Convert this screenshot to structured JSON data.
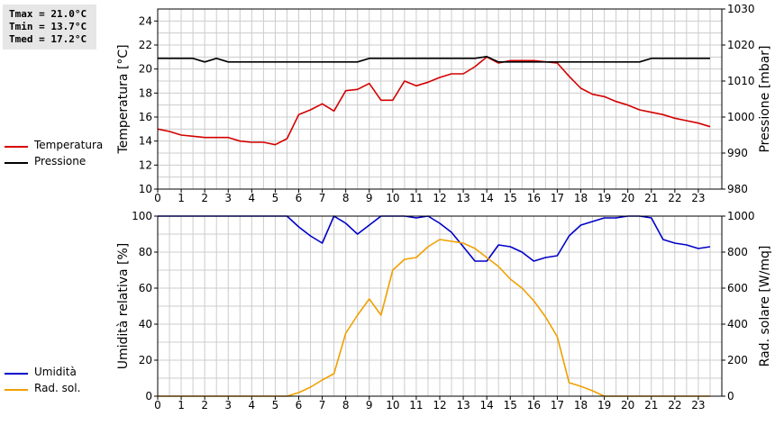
{
  "stats": {
    "tmax": "Tmax = 21.0°C",
    "tmin": "Tmin = 13.7°C",
    "tmed": "Tmed = 17.2°C"
  },
  "colors": {
    "temperature": "#d40000",
    "pressure": "#000000",
    "humidity": "#0000c8",
    "solar": "#f0a000",
    "grid": "#cccccc"
  },
  "legend_top": [
    {
      "label": "Temperatura",
      "color": "#d40000"
    },
    {
      "label": "Pressione",
      "color": "#000000"
    }
  ],
  "legend_bottom": [
    {
      "label": "Umidità",
      "color": "#0000c8"
    },
    {
      "label": "Rad. sol.",
      "color": "#f0a000"
    }
  ],
  "chart_data": [
    {
      "type": "line",
      "ylabel": "Temperatura [°C]",
      "y2label": "Pressione [mbar]",
      "xlim": [
        0,
        24
      ],
      "xticks": [
        "0",
        "1",
        "2",
        "3",
        "4",
        "5",
        "6",
        "7",
        "8",
        "9",
        "10",
        "11",
        "12",
        "13",
        "14",
        "15",
        "16",
        "17",
        "18",
        "19",
        "20",
        "21",
        "22",
        "23"
      ],
      "ylim": [
        10,
        25
      ],
      "yticks": [
        "10",
        "12",
        "14",
        "16",
        "18",
        "20",
        "22",
        "24"
      ],
      "y2lim": [
        980,
        1030
      ],
      "y2ticks": [
        "980",
        "990",
        "1000",
        "1010",
        "1020",
        "1030"
      ],
      "grid": true,
      "series": [
        {
          "name": "Temperatura",
          "axis": "left",
          "color": "#d40000",
          "x": [
            0,
            0.5,
            1,
            1.5,
            2,
            2.5,
            3,
            3.5,
            4,
            4.5,
            5,
            5.5,
            6,
            6.5,
            7,
            7.5,
            8,
            8.5,
            9,
            9.5,
            10,
            10.5,
            11,
            11.5,
            12,
            12.5,
            13,
            13.5,
            14,
            14.5,
            15,
            15.5,
            16,
            16.5,
            17,
            17.5,
            18,
            18.5,
            19,
            19.5,
            20,
            20.5,
            21,
            21.5,
            22,
            22.5,
            23,
            23.5
          ],
          "y": [
            15.0,
            14.8,
            14.5,
            14.4,
            14.3,
            14.3,
            14.3,
            14.0,
            13.9,
            13.9,
            13.7,
            14.2,
            16.2,
            16.6,
            17.1,
            16.5,
            18.2,
            18.3,
            18.8,
            17.4,
            17.4,
            19.0,
            18.6,
            18.9,
            19.3,
            19.6,
            19.6,
            20.2,
            21.0,
            20.5,
            20.7,
            20.7,
            20.7,
            20.6,
            20.5,
            19.4,
            18.4,
            17.9,
            17.7,
            17.3,
            17.0,
            16.6,
            16.4,
            16.2,
            15.9,
            15.7,
            15.5,
            15.2
          ]
        },
        {
          "name": "Pressione",
          "axis": "right",
          "color": "#000000",
          "x": [
            0,
            1.5,
            2,
            2.5,
            3,
            5,
            8.5,
            9,
            13.5,
            14,
            14.5,
            15,
            16,
            16.5,
            17,
            20.5,
            21,
            23.5
          ],
          "y": [
            1016.3,
            1016.3,
            1015.3,
            1016.3,
            1015.3,
            1015.3,
            1015.3,
            1016.3,
            1016.3,
            1016.8,
            1015.3,
            1015.3,
            1015.3,
            1015.3,
            1015.3,
            1015.3,
            1016.3,
            1016.3
          ]
        }
      ]
    },
    {
      "type": "line",
      "ylabel": "Umidità relativa [%]",
      "y2label": "Rad. solare [W/mq]",
      "xlim": [
        0,
        24
      ],
      "xticks": [
        "0",
        "1",
        "2",
        "3",
        "4",
        "5",
        "6",
        "7",
        "8",
        "9",
        "10",
        "11",
        "12",
        "13",
        "14",
        "15",
        "16",
        "17",
        "18",
        "19",
        "20",
        "21",
        "22",
        "23"
      ],
      "ylim": [
        0,
        100
      ],
      "yticks": [
        "0",
        "20",
        "40",
        "60",
        "80",
        "100"
      ],
      "y2lim": [
        0,
        1000
      ],
      "y2ticks": [
        "0",
        "200",
        "400",
        "600",
        "800",
        "1000"
      ],
      "grid": true,
      "series": [
        {
          "name": "Umidità",
          "axis": "left",
          "color": "#0000c8",
          "x": [
            0,
            5.5,
            6,
            6.5,
            7,
            7.5,
            8,
            8.5,
            9,
            9.5,
            10,
            10.5,
            11,
            11.5,
            12,
            12.5,
            13,
            13.5,
            14,
            14.5,
            15,
            15.5,
            16,
            16.5,
            17,
            17.5,
            18,
            18.5,
            19,
            19.5,
            20,
            20.5,
            21,
            21.5,
            22,
            22.5,
            23,
            23.5
          ],
          "y": [
            100,
            100,
            94,
            89,
            85,
            100,
            96,
            90,
            95,
            100,
            100,
            100,
            99,
            100,
            96,
            91,
            83,
            75,
            75,
            84,
            83,
            80,
            75,
            77,
            78,
            89,
            95,
            97,
            99,
            99,
            100,
            100,
            99,
            87,
            85,
            84,
            82,
            83
          ]
        },
        {
          "name": "Rad. sol.",
          "axis": "right",
          "color": "#f0a000",
          "x": [
            0,
            5.5,
            6,
            6.5,
            7,
            7.5,
            8,
            8.5,
            9,
            9.5,
            10,
            10.5,
            11,
            11.5,
            12,
            12.5,
            13,
            13.5,
            14,
            14.5,
            15,
            15.5,
            16,
            16.5,
            17,
            17.5,
            18,
            18.5,
            19,
            19.5,
            20,
            23.5
          ],
          "y": [
            0,
            0,
            20,
            50,
            90,
            125,
            350,
            450,
            540,
            450,
            700,
            760,
            770,
            830,
            870,
            860,
            850,
            820,
            770,
            720,
            650,
            600,
            530,
            440,
            330,
            75,
            55,
            30,
            0,
            0,
            0,
            0
          ]
        }
      ]
    }
  ]
}
